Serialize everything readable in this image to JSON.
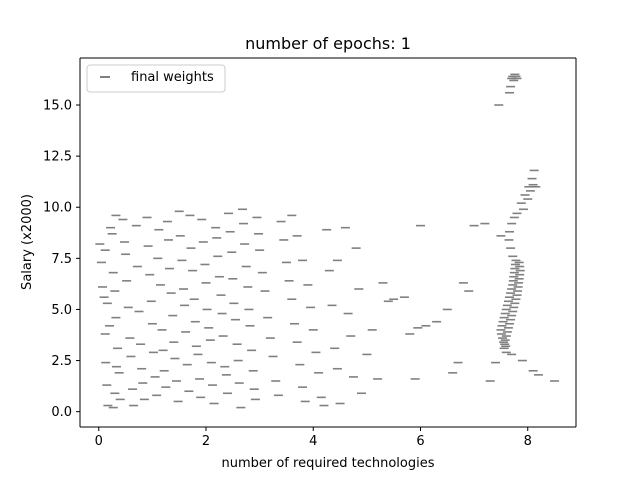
{
  "chart_data": {
    "type": "scatter",
    "title": "number of epochs: 1",
    "xlabel": "number of required technologies",
    "ylabel": "Salary (x2000)",
    "xlim": [
      -0.35,
      8.9
    ],
    "ylim": [
      -0.75,
      17.3
    ],
    "xticks": [
      0,
      2,
      4,
      6,
      8
    ],
    "xtick_labels": [
      "0",
      "2",
      "4",
      "6",
      "8"
    ],
    "yticks": [
      0.0,
      2.5,
      5.0,
      7.5,
      10.0,
      12.5,
      15.0
    ],
    "ytick_labels": [
      "0.0",
      "2.5",
      "5.0",
      "7.5",
      "10.0",
      "12.5",
      "15.0"
    ],
    "grid": false,
    "legend_position": "top-left",
    "marker": "_",
    "series": [
      {
        "name": "final weights",
        "color": "#808080",
        "points": [
          [
            0.02,
            8.2
          ],
          [
            0.05,
            7.3
          ],
          [
            0.07,
            6.1
          ],
          [
            0.1,
            5.6
          ],
          [
            0.12,
            3.8
          ],
          [
            0.13,
            2.4
          ],
          [
            0.15,
            1.3
          ],
          [
            0.17,
            0.3
          ],
          [
            0.22,
            9.0
          ],
          [
            0.25,
            8.7
          ],
          [
            0.27,
            6.8
          ],
          [
            0.3,
            5.9
          ],
          [
            0.32,
            4.6
          ],
          [
            0.35,
            3.1
          ],
          [
            0.38,
            1.9
          ],
          [
            0.4,
            0.6
          ],
          [
            0.32,
            9.6
          ],
          [
            0.45,
            9.4
          ],
          [
            0.48,
            8.3
          ],
          [
            0.5,
            7.7
          ],
          [
            0.52,
            6.4
          ],
          [
            0.55,
            5.1
          ],
          [
            0.58,
            3.6
          ],
          [
            0.6,
            2.7
          ],
          [
            0.63,
            1.1
          ],
          [
            0.65,
            0.3
          ],
          [
            0.27,
            0.2
          ],
          [
            0.3,
            0.9
          ],
          [
            0.33,
            2.2
          ],
          [
            0.2,
            4.2
          ],
          [
            0.16,
            5.3
          ],
          [
            0.12,
            7.9
          ],
          [
            0.7,
            9.1
          ],
          [
            0.72,
            7.1
          ],
          [
            0.75,
            4.9
          ],
          [
            0.78,
            3.3
          ],
          [
            0.8,
            2.1
          ],
          [
            0.82,
            1.4
          ],
          [
            0.85,
            0.6
          ],
          [
            0.9,
            9.5
          ],
          [
            0.92,
            8.1
          ],
          [
            0.95,
            6.7
          ],
          [
            0.98,
            5.4
          ],
          [
            1.0,
            4.3
          ],
          [
            1.02,
            2.9
          ],
          [
            1.05,
            1.7
          ],
          [
            1.08,
            0.8
          ],
          [
            1.1,
            7.5
          ],
          [
            1.12,
            8.9
          ],
          [
            1.15,
            6.2
          ],
          [
            1.18,
            4.0
          ],
          [
            1.2,
            3.0
          ],
          [
            1.22,
            2.0
          ],
          [
            1.25,
            1.2
          ],
          [
            1.28,
            9.3
          ],
          [
            1.3,
            8.4
          ],
          [
            1.32,
            7.0
          ],
          [
            1.35,
            5.8
          ],
          [
            1.38,
            4.7
          ],
          [
            1.4,
            3.4
          ],
          [
            1.42,
            2.6
          ],
          [
            1.45,
            1.5
          ],
          [
            1.48,
            0.5
          ],
          [
            1.5,
            9.8
          ],
          [
            1.52,
            8.6
          ],
          [
            1.55,
            7.4
          ],
          [
            1.58,
            6.0
          ],
          [
            1.6,
            5.2
          ],
          [
            1.62,
            3.9
          ],
          [
            1.65,
            2.3
          ],
          [
            1.68,
            1.0
          ],
          [
            1.7,
            9.6
          ],
          [
            1.72,
            8.0
          ],
          [
            1.75,
            6.9
          ],
          [
            1.78,
            5.5
          ],
          [
            1.8,
            4.4
          ],
          [
            1.82,
            3.2
          ],
          [
            1.85,
            2.8
          ],
          [
            1.88,
            1.6
          ],
          [
            1.9,
            0.7
          ],
          [
            1.92,
            9.4
          ],
          [
            1.95,
            8.3
          ],
          [
            1.98,
            7.2
          ],
          [
            2.0,
            6.3
          ],
          [
            2.02,
            5.0
          ],
          [
            2.05,
            4.1
          ],
          [
            2.08,
            3.5
          ],
          [
            2.1,
            2.4
          ],
          [
            2.12,
            1.3
          ],
          [
            2.15,
            0.4
          ],
          [
            2.18,
            9.0
          ],
          [
            2.2,
            8.5
          ],
          [
            2.22,
            7.6
          ],
          [
            2.25,
            6.6
          ],
          [
            2.28,
            5.7
          ],
          [
            2.3,
            4.8
          ],
          [
            2.32,
            3.7
          ],
          [
            2.35,
            2.2
          ],
          [
            2.38,
            1.8
          ],
          [
            2.4,
            0.9
          ],
          [
            2.42,
            9.7
          ],
          [
            2.45,
            8.8
          ],
          [
            2.48,
            7.8
          ],
          [
            2.5,
            6.5
          ],
          [
            2.52,
            5.3
          ],
          [
            2.55,
            4.5
          ],
          [
            2.58,
            3.3
          ],
          [
            2.6,
            2.5
          ],
          [
            2.62,
            1.4
          ],
          [
            2.65,
            0.2
          ],
          [
            2.68,
            9.9
          ],
          [
            2.7,
            9.2
          ],
          [
            2.72,
            8.2
          ],
          [
            2.75,
            7.1
          ],
          [
            2.78,
            6.1
          ],
          [
            2.8,
            5.0
          ],
          [
            2.82,
            4.2
          ],
          [
            2.85,
            3.0
          ],
          [
            2.88,
            2.0
          ],
          [
            2.9,
            1.1
          ],
          [
            2.92,
            0.6
          ],
          [
            2.95,
            9.5
          ],
          [
            2.98,
            8.7
          ],
          [
            3.0,
            7.9
          ],
          [
            3.05,
            6.8
          ],
          [
            3.1,
            5.9
          ],
          [
            3.15,
            4.6
          ],
          [
            3.2,
            3.6
          ],
          [
            3.25,
            2.7
          ],
          [
            3.3,
            1.5
          ],
          [
            3.35,
            0.8
          ],
          [
            3.4,
            9.3
          ],
          [
            3.45,
            8.4
          ],
          [
            3.5,
            7.3
          ],
          [
            3.55,
            6.4
          ],
          [
            3.6,
            5.5
          ],
          [
            3.65,
            4.3
          ],
          [
            3.7,
            3.4
          ],
          [
            3.75,
            2.3
          ],
          [
            3.8,
            1.2
          ],
          [
            3.85,
            0.5
          ],
          [
            3.6,
            9.6
          ],
          [
            3.7,
            8.6
          ],
          [
            3.8,
            7.4
          ],
          [
            3.9,
            6.2
          ],
          [
            3.95,
            5.1
          ],
          [
            4.0,
            4.0
          ],
          [
            4.05,
            2.9
          ],
          [
            4.1,
            1.9
          ],
          [
            4.15,
            0.7
          ],
          [
            4.2,
            0.3
          ],
          [
            4.25,
            8.9
          ],
          [
            4.3,
            6.9
          ],
          [
            4.35,
            5.2
          ],
          [
            4.4,
            3.1
          ],
          [
            4.45,
            2.1
          ],
          [
            4.5,
            0.4
          ],
          [
            4.45,
            7.4
          ],
          [
            4.6,
            9.0
          ],
          [
            4.65,
            4.8
          ],
          [
            4.7,
            3.7
          ],
          [
            4.75,
            1.7
          ],
          [
            4.8,
            8.0
          ],
          [
            4.85,
            6.0
          ],
          [
            4.9,
            0.9
          ],
          [
            5.0,
            2.8
          ],
          [
            5.1,
            4.0
          ],
          [
            5.2,
            1.6
          ],
          [
            5.3,
            6.3
          ],
          [
            5.4,
            5.4
          ],
          [
            5.5,
            5.5
          ],
          [
            5.7,
            5.6
          ],
          [
            5.8,
            3.8
          ],
          [
            5.9,
            1.6
          ],
          [
            5.95,
            4.1
          ],
          [
            6.0,
            9.1
          ],
          [
            6.1,
            4.2
          ],
          [
            6.3,
            4.4
          ],
          [
            6.5,
            5.0
          ],
          [
            6.6,
            1.9
          ],
          [
            6.7,
            2.4
          ],
          [
            6.8,
            6.3
          ],
          [
            6.9,
            5.9
          ],
          [
            7.0,
            9.1
          ],
          [
            7.2,
            9.2
          ],
          [
            7.3,
            1.5
          ],
          [
            7.4,
            2.4
          ],
          [
            7.5,
            8.6
          ],
          [
            7.6,
            2.9
          ],
          [
            7.7,
            2.8
          ],
          [
            7.9,
            2.5
          ],
          [
            8.1,
            2.0
          ],
          [
            8.2,
            1.8
          ],
          [
            8.5,
            1.5
          ],
          [
            7.46,
            15.0
          ],
          [
            7.5,
            4.0
          ],
          [
            7.51,
            3.8
          ],
          [
            7.52,
            4.2
          ],
          [
            7.53,
            3.6
          ],
          [
            7.54,
            4.4
          ],
          [
            7.55,
            3.4
          ],
          [
            7.56,
            4.6
          ],
          [
            7.57,
            3.3
          ],
          [
            7.58,
            4.8
          ],
          [
            7.59,
            3.2
          ],
          [
            7.6,
            5.0
          ],
          [
            7.62,
            5.2
          ],
          [
            7.64,
            5.4
          ],
          [
            7.66,
            5.6
          ],
          [
            7.68,
            5.8
          ],
          [
            7.7,
            6.0
          ],
          [
            7.72,
            6.2
          ],
          [
            7.73,
            6.4
          ],
          [
            7.74,
            6.6
          ],
          [
            7.75,
            6.8
          ],
          [
            7.76,
            7.0
          ],
          [
            7.77,
            7.2
          ],
          [
            7.78,
            7.4
          ],
          [
            7.72,
            7.6
          ],
          [
            7.68,
            8.0
          ],
          [
            7.65,
            8.4
          ],
          [
            7.66,
            8.8
          ],
          [
            7.7,
            9.2
          ],
          [
            7.75,
            9.5
          ],
          [
            7.8,
            9.7
          ],
          [
            7.88,
            10.2
          ],
          [
            7.95,
            10.6
          ],
          [
            8.02,
            11.0
          ],
          [
            8.08,
            11.4
          ],
          [
            8.12,
            11.8
          ],
          [
            8.1,
            11.1
          ],
          [
            8.15,
            11.0
          ],
          [
            8.05,
            10.8
          ],
          [
            8.0,
            10.4
          ],
          [
            7.92,
            9.9
          ],
          [
            7.62,
            3.9
          ],
          [
            7.6,
            3.7
          ],
          [
            7.64,
            4.1
          ],
          [
            7.58,
            3.5
          ],
          [
            7.66,
            4.3
          ],
          [
            7.56,
            3.1
          ],
          [
            7.68,
            4.5
          ],
          [
            7.7,
            4.7
          ],
          [
            7.72,
            4.9
          ],
          [
            7.74,
            5.1
          ],
          [
            7.76,
            5.3
          ],
          [
            7.78,
            5.5
          ],
          [
            7.8,
            5.7
          ],
          [
            7.81,
            5.9
          ],
          [
            7.82,
            6.1
          ],
          [
            7.83,
            6.3
          ],
          [
            7.84,
            6.5
          ],
          [
            7.85,
            6.7
          ],
          [
            7.86,
            6.9
          ],
          [
            7.85,
            7.1
          ],
          [
            7.84,
            7.3
          ],
          [
            7.7,
            16.3
          ],
          [
            7.72,
            16.4
          ],
          [
            7.74,
            16.2
          ],
          [
            7.76,
            16.5
          ],
          [
            7.78,
            16.4
          ],
          [
            7.8,
            16.3
          ],
          [
            7.68,
            15.9
          ],
          [
            7.66,
            15.6
          ]
        ]
      }
    ]
  }
}
